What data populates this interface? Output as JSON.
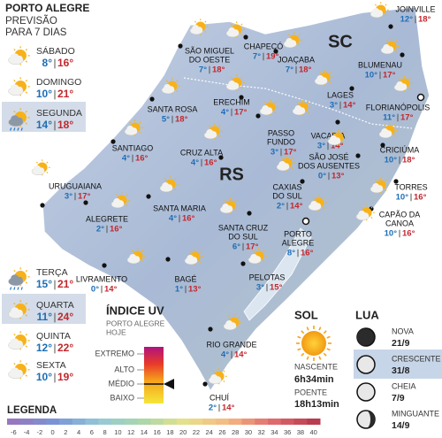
{
  "header": {
    "title": "PORTO ALEGRE",
    "lines": [
      "PREVISÃO",
      "PARA 7 DIAS"
    ]
  },
  "forecast": [
    {
      "day": "SÁBADO",
      "min": "8°",
      "max": "16°"
    },
    {
      "day": "DOMINGO",
      "min": "10°",
      "max": "21°"
    },
    {
      "day": "SEGUNDA",
      "min": "14°",
      "max": "18°"
    },
    {
      "day": "TERÇA",
      "min": "15°",
      "max": "21°"
    },
    {
      "day": "QUARTA",
      "min": "11°",
      "max": "24°"
    },
    {
      "day": "QUINTA",
      "min": "12°",
      "max": "22°"
    },
    {
      "day": "SEXTA",
      "min": "10°",
      "max": "19°"
    }
  ],
  "regions": [
    "SC",
    "RS"
  ],
  "cities": [
    {
      "name": [
        "JOINVILLE"
      ],
      "min": "12°",
      "max": "18°"
    },
    {
      "name": [
        "SÃO MIGUEL",
        "DO OESTE"
      ],
      "min": "7°",
      "max": "18°"
    },
    {
      "name": [
        "CHAPECÓ"
      ],
      "min": "7°",
      "max": "19°"
    },
    {
      "name": [
        "JOAÇABA"
      ],
      "min": "7°",
      "max": "18°"
    },
    {
      "name": [
        "BLUMENAU"
      ],
      "min": "10°",
      "max": "17°"
    },
    {
      "name": [
        "LAGES"
      ],
      "min": "3°",
      "max": "14°"
    },
    {
      "name": [
        "FLORIANÓPOLIS"
      ],
      "min": "11°",
      "max": "17°"
    },
    {
      "name": [
        "SANTA ROSA"
      ],
      "min": "5°",
      "max": "18°"
    },
    {
      "name": [
        "ERECHIM"
      ],
      "min": "4°",
      "max": "17°"
    },
    {
      "name": [
        "PASSO",
        "FUNDO"
      ],
      "min": "3°",
      "max": "17°"
    },
    {
      "name": [
        "VACARIA"
      ],
      "min": "3°",
      "max": "14°"
    },
    {
      "name": [
        "CRICIÚMA"
      ],
      "min": "10°",
      "max": "18°"
    },
    {
      "name": [
        "SANTIAGO"
      ],
      "min": "4°",
      "max": "16°"
    },
    {
      "name": [
        "CRUZ ALTA"
      ],
      "min": "4°",
      "max": "16°"
    },
    {
      "name": [
        "SÃO JOSÉ",
        "DOS AUSENTES"
      ],
      "min": "0°",
      "max": "13°"
    },
    {
      "name": [
        "URUGUAIANA"
      ],
      "min": "3°",
      "max": "17°"
    },
    {
      "name": [
        "CAXIAS",
        "DO SUL"
      ],
      "min": "2°",
      "max": "14°"
    },
    {
      "name": [
        "TORRES"
      ],
      "min": "10°",
      "max": "16°"
    },
    {
      "name": [
        "ALEGRETE"
      ],
      "min": "2°",
      "max": "16°"
    },
    {
      "name": [
        "SANTA MARIA"
      ],
      "min": "4°",
      "max": "16°"
    },
    {
      "name": [
        "SANTA CRUZ",
        "DO SUL"
      ],
      "min": "6°",
      "max": "17°"
    },
    {
      "name": [
        "CAPÃO DA",
        "CANOA"
      ],
      "min": "10°",
      "max": "16°"
    },
    {
      "name": [
        "PORTO",
        "ALEGRE"
      ],
      "min": "8°",
      "max": "16°"
    },
    {
      "name": [
        "LIVRAMENTO"
      ],
      "min": "0°",
      "max": "14°"
    },
    {
      "name": [
        "BAGÉ"
      ],
      "min": "1°",
      "max": "13°"
    },
    {
      "name": [
        "PELOTAS"
      ],
      "min": "3°",
      "max": "15°"
    },
    {
      "name": [
        "RIO GRANDE"
      ],
      "min": "4°",
      "max": "14°"
    },
    {
      "name": [
        "CHUÍ"
      ],
      "min": "2°",
      "max": "14°"
    }
  ],
  "uv": {
    "title": "ÍNDICE UV",
    "lines": [
      "PORTO ALEGRE",
      "HOJE"
    ],
    "levels": [
      "EXTREMO",
      "ALTO",
      "MÉDIO",
      "BAIXO"
    ]
  },
  "sun": {
    "title": "SOL",
    "rise_label": "NASCENTE",
    "rise": "6h34min",
    "set_label": "POENTE",
    "set": "18h13min"
  },
  "moon": {
    "title": "LUA",
    "phases": [
      {
        "name": "NOVA",
        "date": "21/9"
      },
      {
        "name": "CRESCENTE",
        "date": "31/8"
      },
      {
        "name": "CHEIA",
        "date": "7/9"
      },
      {
        "name": "MINGUANTE",
        "date": "14/9"
      }
    ]
  },
  "legend": {
    "title": "LEGENDA",
    "values": [
      -6,
      -4,
      -2,
      0,
      2,
      4,
      6,
      8,
      10,
      12,
      14,
      16,
      18,
      20,
      22,
      24,
      26,
      28,
      30,
      32,
      34,
      36,
      38,
      40
    ]
  }
}
